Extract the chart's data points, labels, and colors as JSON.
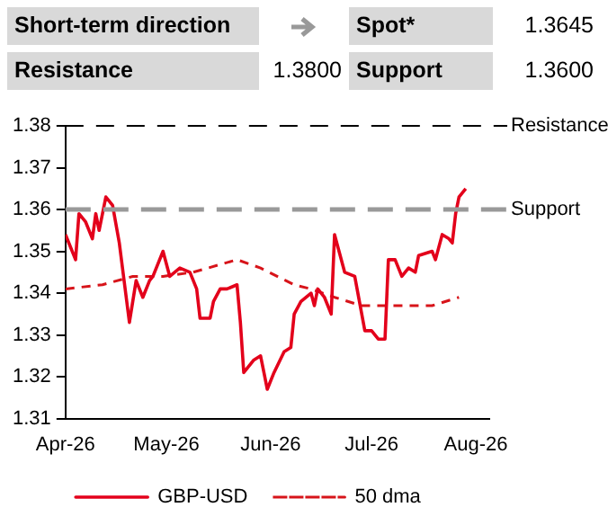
{
  "chart_data": {
    "type": "line",
    "annotations": [
      "Short-term direction",
      "Spot*",
      "1.3645",
      "Resistance",
      "1.3800",
      "Support",
      "1.3600"
    ],
    "xlim": [
      "2026-04-01",
      "2026-08-05"
    ],
    "xticks": [
      {
        "value": "2026-04-01",
        "label": "Apr-26"
      },
      {
        "value": "2026-05-01",
        "label": "May-26"
      },
      {
        "value": "2026-06-01",
        "label": "Jun-26"
      },
      {
        "value": "2026-07-01",
        "label": "Jul-26"
      },
      {
        "value": "2026-08-01",
        "label": "Aug-26"
      }
    ],
    "ylim": [
      1.31,
      1.38
    ],
    "yticks": [
      1.31,
      1.32,
      1.33,
      1.34,
      1.35,
      1.36,
      1.37,
      1.38
    ],
    "grid": false,
    "legend": "bottom",
    "marker": "none",
    "ref_lines": [
      {
        "axis": "y",
        "value": 1.38,
        "label": "Resistance",
        "color": "#000000",
        "line_style": "dashed"
      },
      {
        "axis": "y",
        "value": 1.36,
        "label": "Support",
        "color": "#999999",
        "line_style": "dashed"
      }
    ],
    "series": [
      {
        "name": "GBP-USD",
        "color": "#e3001b",
        "line_style": "solid",
        "x": [
          "2026-04-01",
          "2026-04-02",
          "2026-04-04",
          "2026-04-05",
          "2026-04-07",
          "2026-04-09",
          "2026-04-10",
          "2026-04-11",
          "2026-04-13",
          "2026-04-15",
          "2026-04-17",
          "2026-04-20",
          "2026-04-22",
          "2026-04-24",
          "2026-04-26",
          "2026-04-27",
          "2026-04-30",
          "2026-05-02",
          "2026-05-05",
          "2026-05-08",
          "2026-05-10",
          "2026-05-11",
          "2026-05-14",
          "2026-05-15",
          "2026-05-17",
          "2026-05-19",
          "2026-05-22",
          "2026-05-23",
          "2026-05-24",
          "2026-05-27",
          "2026-05-29",
          "2026-05-30",
          "2026-05-31",
          "2026-06-02",
          "2026-06-05",
          "2026-06-07",
          "2026-06-08",
          "2026-06-10",
          "2026-06-13",
          "2026-06-14",
          "2026-06-15",
          "2026-06-17",
          "2026-06-19",
          "2026-06-20",
          "2026-06-23",
          "2026-06-26",
          "2026-06-29",
          "2026-07-01",
          "2026-07-03",
          "2026-07-05",
          "2026-07-06",
          "2026-07-08",
          "2026-07-10",
          "2026-07-12",
          "2026-07-14",
          "2026-07-15",
          "2026-07-19",
          "2026-07-20",
          "2026-07-22",
          "2026-07-24",
          "2026-07-25",
          "2026-07-26",
          "2026-07-27",
          "2026-07-29"
        ],
        "values": [
          1.354,
          1.352,
          1.348,
          1.359,
          1.357,
          1.353,
          1.359,
          1.355,
          1.363,
          1.361,
          1.352,
          1.333,
          1.343,
          1.339,
          1.343,
          1.344,
          1.35,
          1.344,
          1.346,
          1.345,
          1.341,
          1.334,
          1.334,
          1.338,
          1.341,
          1.341,
          1.342,
          1.333,
          1.321,
          1.324,
          1.325,
          1.321,
          1.317,
          1.321,
          1.326,
          1.327,
          1.335,
          1.338,
          1.34,
          1.337,
          1.341,
          1.339,
          1.335,
          1.354,
          1.345,
          1.344,
          1.331,
          1.331,
          1.329,
          1.329,
          1.348,
          1.348,
          1.344,
          1.346,
          1.345,
          1.349,
          1.35,
          1.348,
          1.354,
          1.353,
          1.352,
          1.359,
          1.363,
          1.365
        ]
      },
      {
        "name": "50 dma",
        "color": "#d7141a",
        "line_style": "dashed",
        "x": [
          "2026-04-01",
          "2026-04-12",
          "2026-04-21",
          "2026-04-30",
          "2026-05-09",
          "2026-05-22",
          "2026-05-29",
          "2026-06-08",
          "2026-06-13",
          "2026-06-20",
          "2026-06-28",
          "2026-07-05",
          "2026-07-12",
          "2026-07-19",
          "2026-07-27"
        ],
        "values": [
          1.341,
          1.342,
          1.344,
          1.344,
          1.345,
          1.348,
          1.346,
          1.342,
          1.341,
          1.339,
          1.337,
          1.337,
          1.337,
          1.337,
          1.339
        ]
      }
    ]
  }
}
